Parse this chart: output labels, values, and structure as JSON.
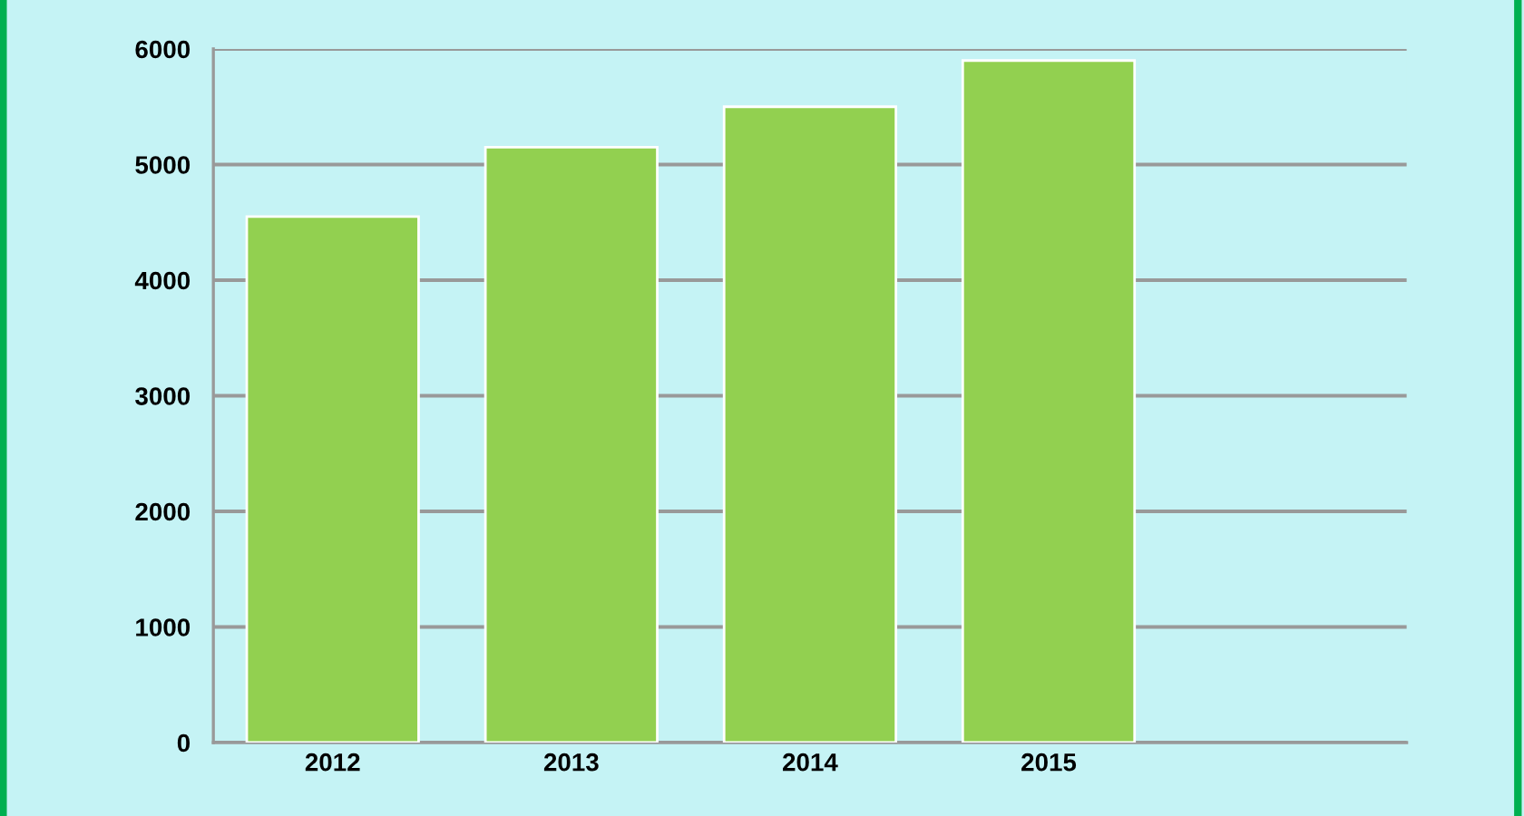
{
  "chart_data": {
    "type": "bar",
    "categories": [
      "2012",
      "2013",
      "2014",
      "2015",
      null
    ],
    "values": [
      4550,
      5150,
      5500,
      5900,
      null
    ],
    "color": "#92d050",
    "ylim": [
      0,
      6000
    ],
    "yticks": [
      0,
      1000,
      2000,
      3000,
      4000,
      5000,
      6000
    ],
    "grid": "y",
    "legend": false
  }
}
